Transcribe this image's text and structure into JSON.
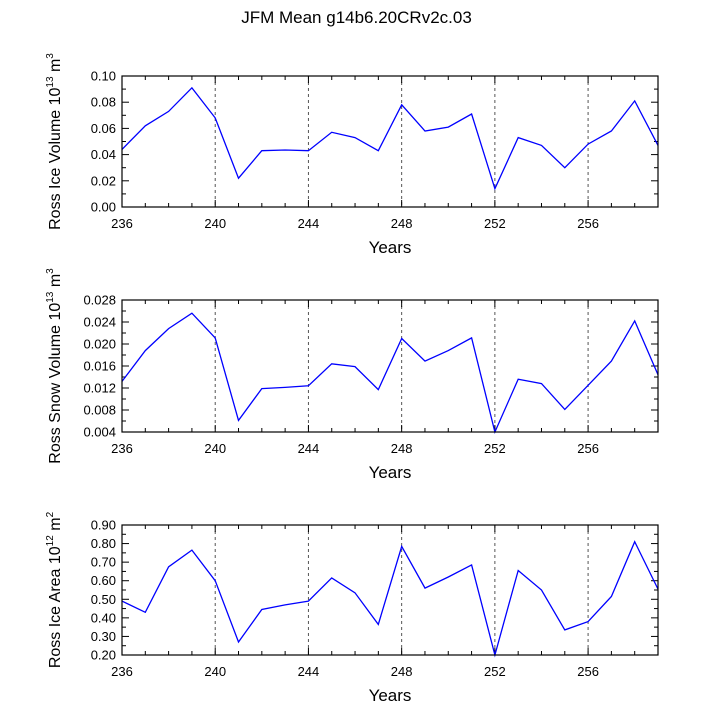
{
  "title": "JFM Mean g14b6.20CRv2c.03",
  "chart_data": [
    {
      "type": "line",
      "ylabel_main": "Ross Ice Volume 10",
      "ylabel_exp": "13",
      "ylabel_unit": " m",
      "ylabel_unit_exp": "3",
      "xlabel": "Years",
      "xlim": [
        236,
        259
      ],
      "ylim": [
        0.0,
        0.1
      ],
      "x_ticks": [
        236,
        240,
        244,
        248,
        252,
        256
      ],
      "y_ticks": [
        "0.00",
        "0.02",
        "0.04",
        "0.06",
        "0.08",
        "0.10"
      ],
      "grid_x": [
        240,
        244,
        248,
        252,
        256
      ],
      "series": [
        {
          "name": "Ross Ice Volume",
          "color": "#0000ff",
          "x": [
            236,
            237,
            238,
            239,
            240,
            241,
            242,
            243,
            244,
            245,
            246,
            247,
            248,
            249,
            250,
            251,
            252,
            253,
            254,
            255,
            256,
            257,
            258,
            259
          ],
          "values": [
            0.044,
            0.062,
            0.073,
            0.091,
            0.068,
            0.022,
            0.043,
            0.0435,
            0.043,
            0.057,
            0.053,
            0.043,
            0.078,
            0.058,
            0.061,
            0.071,
            0.014,
            0.053,
            0.047,
            0.03,
            0.048,
            0.058,
            0.081,
            0.047
          ]
        }
      ]
    },
    {
      "type": "line",
      "ylabel_main": "Ross Snow Volume 10",
      "ylabel_exp": "13",
      "ylabel_unit": " m",
      "ylabel_unit_exp": "3",
      "xlabel": "Years",
      "xlim": [
        236,
        259
      ],
      "ylim": [
        0.004,
        0.028
      ],
      "x_ticks": [
        236,
        240,
        244,
        248,
        252,
        256
      ],
      "y_ticks": [
        "0.004",
        "0.008",
        "0.012",
        "0.016",
        "0.020",
        "0.024",
        "0.028"
      ],
      "grid_x": [
        240,
        244,
        248,
        252,
        256
      ],
      "series": [
        {
          "name": "Ross Snow Volume",
          "color": "#0000ff",
          "x": [
            236,
            237,
            238,
            239,
            240,
            241,
            242,
            243,
            244,
            245,
            246,
            247,
            248,
            249,
            250,
            251,
            252,
            253,
            254,
            255,
            256,
            257,
            258,
            259
          ],
          "values": [
            0.0132,
            0.0188,
            0.0228,
            0.0256,
            0.0211,
            0.0061,
            0.0119,
            0.0121,
            0.0124,
            0.0164,
            0.0159,
            0.0117,
            0.021,
            0.0169,
            0.0188,
            0.0211,
            0.004,
            0.0136,
            0.0128,
            0.0081,
            0.0125,
            0.0169,
            0.0242,
            0.0144
          ]
        }
      ]
    },
    {
      "type": "line",
      "ylabel_main": "Ross Ice Area 10",
      "ylabel_exp": "12",
      "ylabel_unit": " m",
      "ylabel_unit_exp": "2",
      "xlabel": "Years",
      "xlim": [
        236,
        259
      ],
      "ylim": [
        0.2,
        0.9
      ],
      "x_ticks": [
        236,
        240,
        244,
        248,
        252,
        256
      ],
      "y_ticks": [
        "0.20",
        "0.30",
        "0.40",
        "0.50",
        "0.60",
        "0.70",
        "0.80",
        "0.90"
      ],
      "grid_x": [
        240,
        244,
        248,
        252,
        256
      ],
      "series": [
        {
          "name": "Ross Ice Area",
          "color": "#0000ff",
          "x": [
            236,
            237,
            238,
            239,
            240,
            241,
            242,
            243,
            244,
            245,
            246,
            247,
            248,
            249,
            250,
            251,
            252,
            253,
            254,
            255,
            256,
            257,
            258,
            259
          ],
          "values": [
            0.49,
            0.43,
            0.675,
            0.765,
            0.6,
            0.27,
            0.445,
            0.47,
            0.49,
            0.615,
            0.535,
            0.365,
            0.785,
            0.56,
            0.62,
            0.685,
            0.2,
            0.655,
            0.55,
            0.335,
            0.38,
            0.515,
            0.81,
            0.555
          ]
        }
      ]
    }
  ]
}
